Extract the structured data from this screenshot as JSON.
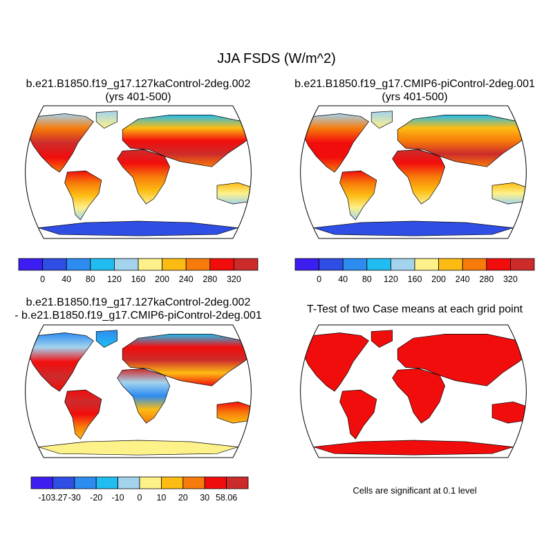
{
  "figure": {
    "title": "JJA FSDS (W/m^2)",
    "note": "Cells are significant at 0.1 level"
  },
  "panels": [
    {
      "id": "p1",
      "title_line1": "b.e21.B1850.f19_g17.127kaControl-2deg.002",
      "title_line2": "(yrs 401-500)"
    },
    {
      "id": "p2",
      "title_line1": "b.e21.B1850.f19_g17.CMIP6-piControl-2deg.001",
      "title_line2": "(yrs 401-500)"
    },
    {
      "id": "p3",
      "title_line1": "b.e21.B1850.f19_g17.127kaControl-2deg.002",
      "title_line2": "- b.e21.B1850.f19_g17.CMIP6-piControl-2deg.001"
    },
    {
      "id": "p4",
      "title_line1": "T-Test of two Case means at each grid point"
    }
  ],
  "chart_data": [
    {
      "type": "heatmap",
      "title": "b.e21.B1850.f19_g17.127kaControl-2deg.002 (yrs 401-500)",
      "colorbar": {
        "ticks": [
          "0",
          "40",
          "80",
          "120",
          "160",
          "200",
          "240",
          "280",
          "320"
        ],
        "colors": [
          "#3c1ef2",
          "#2f4ee3",
          "#2c8cf0",
          "#22bdf0",
          "#a4d3ee",
          "#fdf18a",
          "#fdbc13",
          "#f77b0a",
          "#f20d0d",
          "#cd2b2b"
        ]
      }
    },
    {
      "type": "heatmap",
      "title": "b.e21.B1850.f19_g17.CMIP6-piControl-2deg.001 (yrs 401-500)",
      "colorbar": {
        "ticks": [
          "0",
          "40",
          "80",
          "120",
          "160",
          "200",
          "240",
          "280",
          "320"
        ],
        "colors": [
          "#3c1ef2",
          "#2f4ee3",
          "#2c8cf0",
          "#22bdf0",
          "#a4d3ee",
          "#fdf18a",
          "#fdbc13",
          "#f77b0a",
          "#f20d0d",
          "#cd2b2b"
        ]
      }
    },
    {
      "type": "heatmap",
      "title": "b.e21.B1850.f19_g17.127kaControl-2deg.002 - b.e21.B1850.f19_g17.CMIP6-piControl-2deg.001",
      "colorbar": {
        "ticks": [
          "-103.27",
          "-30",
          "-20",
          "-10",
          "0",
          "10",
          "20",
          "30",
          "58.06"
        ],
        "colors": [
          "#3c1ef2",
          "#2f4ee3",
          "#2c8cf0",
          "#22bdf0",
          "#a4d3ee",
          "#fdf18a",
          "#fdbc13",
          "#f77b0a",
          "#f20d0d",
          "#cd2b2b"
        ]
      }
    },
    {
      "type": "heatmap",
      "title": "T-Test of two Case means at each grid point",
      "fill_color": "#f20d0d"
    }
  ]
}
